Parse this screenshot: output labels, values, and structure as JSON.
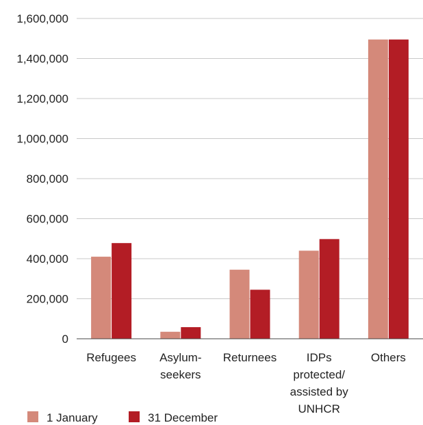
{
  "chart_data": {
    "type": "bar",
    "title": "",
    "xlabel": "",
    "ylabel": "",
    "categories": [
      [
        "Refugees"
      ],
      [
        "Asylum-",
        "seekers"
      ],
      [
        "Returnees"
      ],
      [
        "IDPs",
        "protected/",
        "assisted by",
        "UNHCR"
      ],
      [
        "Others"
      ]
    ],
    "series": [
      {
        "name": "1 January",
        "color": "#d4897a",
        "values": [
          410000,
          35000,
          345000,
          440000,
          1495000
        ]
      },
      {
        "name": "31 December",
        "color": "#b31d25",
        "values": [
          478000,
          58000,
          245000,
          498000,
          1495000
        ]
      }
    ],
    "ylim": [
      0,
      1600000
    ],
    "yticks": [
      0,
      200000,
      400000,
      600000,
      800000,
      1000000,
      1200000,
      1400000,
      1600000
    ],
    "ytick_labels": [
      "0",
      "200,000",
      "400,000",
      "600,000",
      "800,000",
      "1,000,000",
      "1,200,000",
      "1,400,000",
      "1,600,000"
    ],
    "grid": true,
    "legend_position": "bottom-left"
  }
}
